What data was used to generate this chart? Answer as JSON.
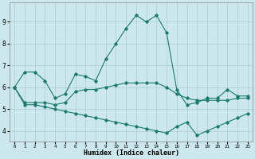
{
  "xlabel": "Humidex (Indice chaleur)",
  "ylabel": "",
  "background_color": "#cce8ee",
  "grid_color": "#aacccc",
  "line_color": "#1a7a6e",
  "x_ticks": [
    0,
    1,
    2,
    3,
    4,
    5,
    6,
    7,
    8,
    9,
    10,
    11,
    12,
    13,
    14,
    15,
    16,
    17,
    18,
    19,
    20,
    21,
    22,
    23
  ],
  "y_ticks": [
    4,
    5,
    6,
    7,
    8,
    9
  ],
  "ylim": [
    3.5,
    9.9
  ],
  "xlim": [
    -0.5,
    23.5
  ],
  "line1_x": [
    0,
    1,
    2,
    3,
    4,
    5,
    6,
    7,
    8,
    9,
    10,
    11,
    12,
    13,
    14,
    15,
    16,
    17,
    18,
    19,
    20,
    21,
    22,
    23
  ],
  "line1_y": [
    6.0,
    6.7,
    6.7,
    6.3,
    5.5,
    5.7,
    6.6,
    6.5,
    6.3,
    7.3,
    8.0,
    8.7,
    9.3,
    9.0,
    9.3,
    8.5,
    5.9,
    5.2,
    5.3,
    5.5,
    5.5,
    5.9,
    5.6,
    5.6
  ],
  "line2_x": [
    0,
    1,
    2,
    3,
    4,
    5,
    6,
    7,
    8,
    9,
    10,
    11,
    12,
    13,
    14,
    15,
    16,
    17,
    18,
    19,
    20,
    21,
    22,
    23
  ],
  "line2_y": [
    6.0,
    5.3,
    5.3,
    5.3,
    5.2,
    5.3,
    5.8,
    5.9,
    5.9,
    6.0,
    6.1,
    6.2,
    6.2,
    6.2,
    6.2,
    6.0,
    5.7,
    5.5,
    5.4,
    5.4,
    5.4,
    5.4,
    5.5,
    5.5
  ],
  "line3_x": [
    0,
    1,
    2,
    3,
    4,
    5,
    6,
    7,
    8,
    9,
    10,
    11,
    12,
    13,
    14,
    15,
    16,
    17,
    18,
    19,
    20,
    21,
    22,
    23
  ],
  "line3_y": [
    6.0,
    5.2,
    5.2,
    5.1,
    5.0,
    4.9,
    4.8,
    4.7,
    4.6,
    4.5,
    4.4,
    4.3,
    4.2,
    4.1,
    4.0,
    3.9,
    4.2,
    4.4,
    3.8,
    4.0,
    4.2,
    4.4,
    4.6,
    4.8
  ]
}
